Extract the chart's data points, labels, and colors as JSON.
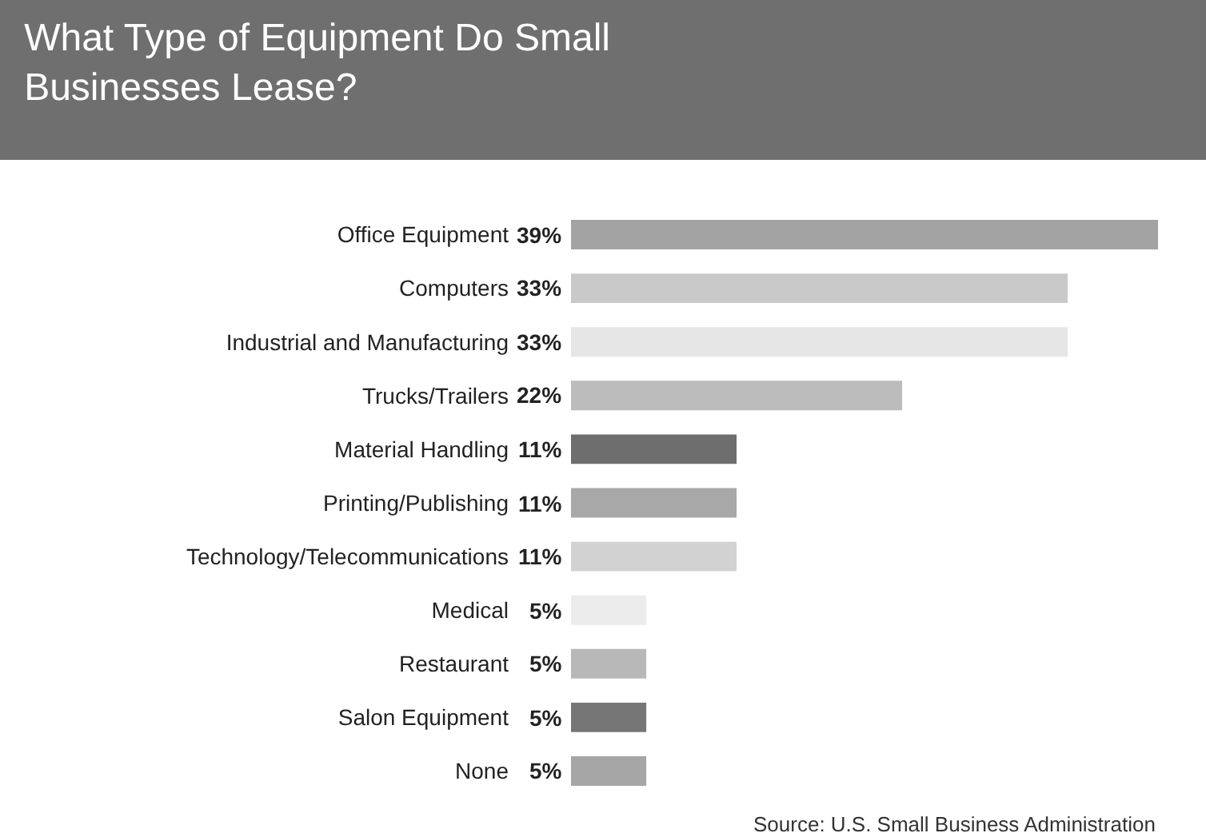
{
  "chart_data": {
    "type": "bar",
    "orientation": "horizontal",
    "title": "What Type of Equipment Do Small Businesses Lease?",
    "categories": [
      "Office Equipment",
      "Computers",
      "Industrial and Manufacturing",
      "Trucks/Trailers",
      "Material Handling",
      "Printing/Publishing",
      "Technology/Telecommunications",
      "Medical",
      "Restaurant",
      "Salon Equipment",
      "None"
    ],
    "values": [
      39,
      33,
      33,
      22,
      11,
      11,
      11,
      5,
      5,
      5,
      5
    ],
    "value_labels": [
      "39%",
      "33%",
      "33%",
      "22%",
      "11%",
      "11%",
      "11%",
      "5%",
      "5%",
      "5%",
      "5%"
    ],
    "colors": [
      "#a3a3a3",
      "#c9c9c9",
      "#e6e6e6",
      "#bcbcbc",
      "#6e6e6e",
      "#a8a8a8",
      "#d2d2d2",
      "#ececec",
      "#b8b8b8",
      "#767676",
      "#a6a6a6"
    ],
    "annotations": [
      "Source: U.S. Small Business Administration"
    ],
    "legend": false
  }
}
